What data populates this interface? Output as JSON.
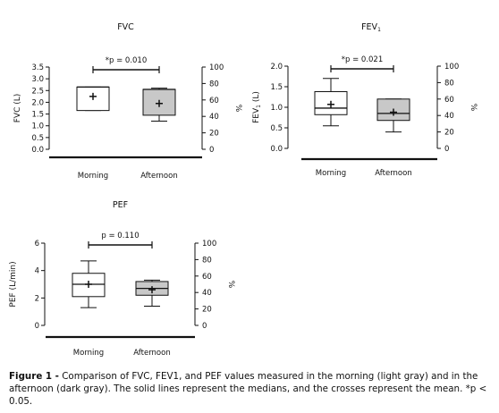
{
  "colors": {
    "morning_box": "#ffffff",
    "afternoon_box": "#c8c8c8",
    "ink": "#111111"
  },
  "chart_data": [
    {
      "type": "box",
      "title": "FVC",
      "ylabel": "FVC (L)",
      "ylabel_right": "%",
      "ylim": [
        0,
        3.5
      ],
      "yticks": [
        "0.0",
        "0.5",
        "1.0",
        "1.5",
        "2.0",
        "2.5",
        "3.0",
        "3.5"
      ],
      "yticks_right": [
        "0",
        "20",
        "40",
        "60",
        "80",
        "100"
      ],
      "categories": [
        "Morning",
        "Afternoon"
      ],
      "boxes": [
        {
          "min": 1.65,
          "q1": 1.65,
          "median": 2.65,
          "q3": 2.65,
          "max": 2.65,
          "mean": 2.25
        },
        {
          "min": 1.2,
          "q1": 1.45,
          "median": 2.55,
          "q3": 2.55,
          "max": 2.6,
          "mean": 1.95
        }
      ],
      "annotation": "*p = 0.010"
    },
    {
      "type": "box",
      "title": "FEV1",
      "ylabel": "FEV1 (L)",
      "ylabel_right": "%",
      "ylim": [
        0,
        2.0
      ],
      "yticks": [
        "0.0",
        "0.5",
        "1.0",
        "1.5",
        "2.0"
      ],
      "yticks_right": [
        "0",
        "20",
        "40",
        "60",
        "80",
        "100"
      ],
      "categories": [
        "Morning",
        "Afternoon"
      ],
      "boxes": [
        {
          "min": 0.55,
          "q1": 0.82,
          "median": 0.98,
          "q3": 1.38,
          "max": 1.7,
          "mean": 1.07
        },
        {
          "min": 0.4,
          "q1": 0.68,
          "median": 0.85,
          "q3": 1.2,
          "max": 1.2,
          "mean": 0.88
        }
      ],
      "annotation": "*p = 0.021"
    },
    {
      "type": "box",
      "title": "PEF",
      "ylabel": "PEF (L/min)",
      "ylabel_right": "%",
      "ylim": [
        0,
        6
      ],
      "yticks": [
        "0",
        "2",
        "4",
        "6"
      ],
      "yticks_right": [
        "0",
        "20",
        "40",
        "60",
        "80",
        "100"
      ],
      "categories": [
        "Morning",
        "Afternoon"
      ],
      "boxes": [
        {
          "min": 1.3,
          "q1": 2.1,
          "median": 3.0,
          "q3": 3.8,
          "max": 4.7,
          "mean": 3.0
        },
        {
          "min": 1.4,
          "q1": 2.2,
          "median": 2.7,
          "q3": 3.2,
          "max": 3.3,
          "mean": 2.6
        }
      ],
      "annotation": "p = 0.110"
    }
  ],
  "caption": {
    "label": "Figure 1 -",
    "text": "Comparison of FVC, FEV1, and PEF values measured in the morning (light gray) and in the afternoon (dark gray). The solid lines represent the medians, and the crosses represent the mean. *p < 0.05."
  }
}
